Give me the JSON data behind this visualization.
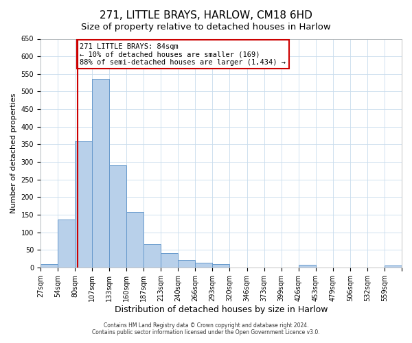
{
  "title": "271, LITTLE BRAYS, HARLOW, CM18 6HD",
  "subtitle": "Size of property relative to detached houses in Harlow",
  "xlabel": "Distribution of detached houses by size in Harlow",
  "ylabel": "Number of detached properties",
  "bin_labels": [
    "27sqm",
    "54sqm",
    "80sqm",
    "107sqm",
    "133sqm",
    "160sqm",
    "187sqm",
    "213sqm",
    "240sqm",
    "266sqm",
    "293sqm",
    "320sqm",
    "346sqm",
    "373sqm",
    "399sqm",
    "426sqm",
    "453sqm",
    "479sqm",
    "506sqm",
    "532sqm",
    "559sqm"
  ],
  "bar_values": [
    10,
    136,
    358,
    535,
    291,
    158,
    66,
    40,
    22,
    14,
    10,
    0,
    0,
    0,
    0,
    8,
    0,
    0,
    0,
    0,
    5
  ],
  "bar_color": "#b8d0ea",
  "bar_edge_color": "#6699cc",
  "vline_color": "#cc0000",
  "vline_position": 2.0,
  "annotation_text": "271 LITTLE BRAYS: 84sqm\n← 10% of detached houses are smaller (169)\n88% of semi-detached houses are larger (1,434) →",
  "annotation_box_color": "#ffffff",
  "annotation_box_edge": "#cc0000",
  "ylim": [
    0,
    650
  ],
  "yticks": [
    0,
    50,
    100,
    150,
    200,
    250,
    300,
    350,
    400,
    450,
    500,
    550,
    600,
    650
  ],
  "footer1": "Contains HM Land Registry data © Crown copyright and database right 2024.",
  "footer2": "Contains public sector information licensed under the Open Government Licence v3.0.",
  "title_fontsize": 11,
  "subtitle_fontsize": 9.5,
  "xlabel_fontsize": 9,
  "ylabel_fontsize": 8,
  "tick_fontsize": 7,
  "footer_fontsize": 5.5,
  "annot_fontsize": 7.5
}
